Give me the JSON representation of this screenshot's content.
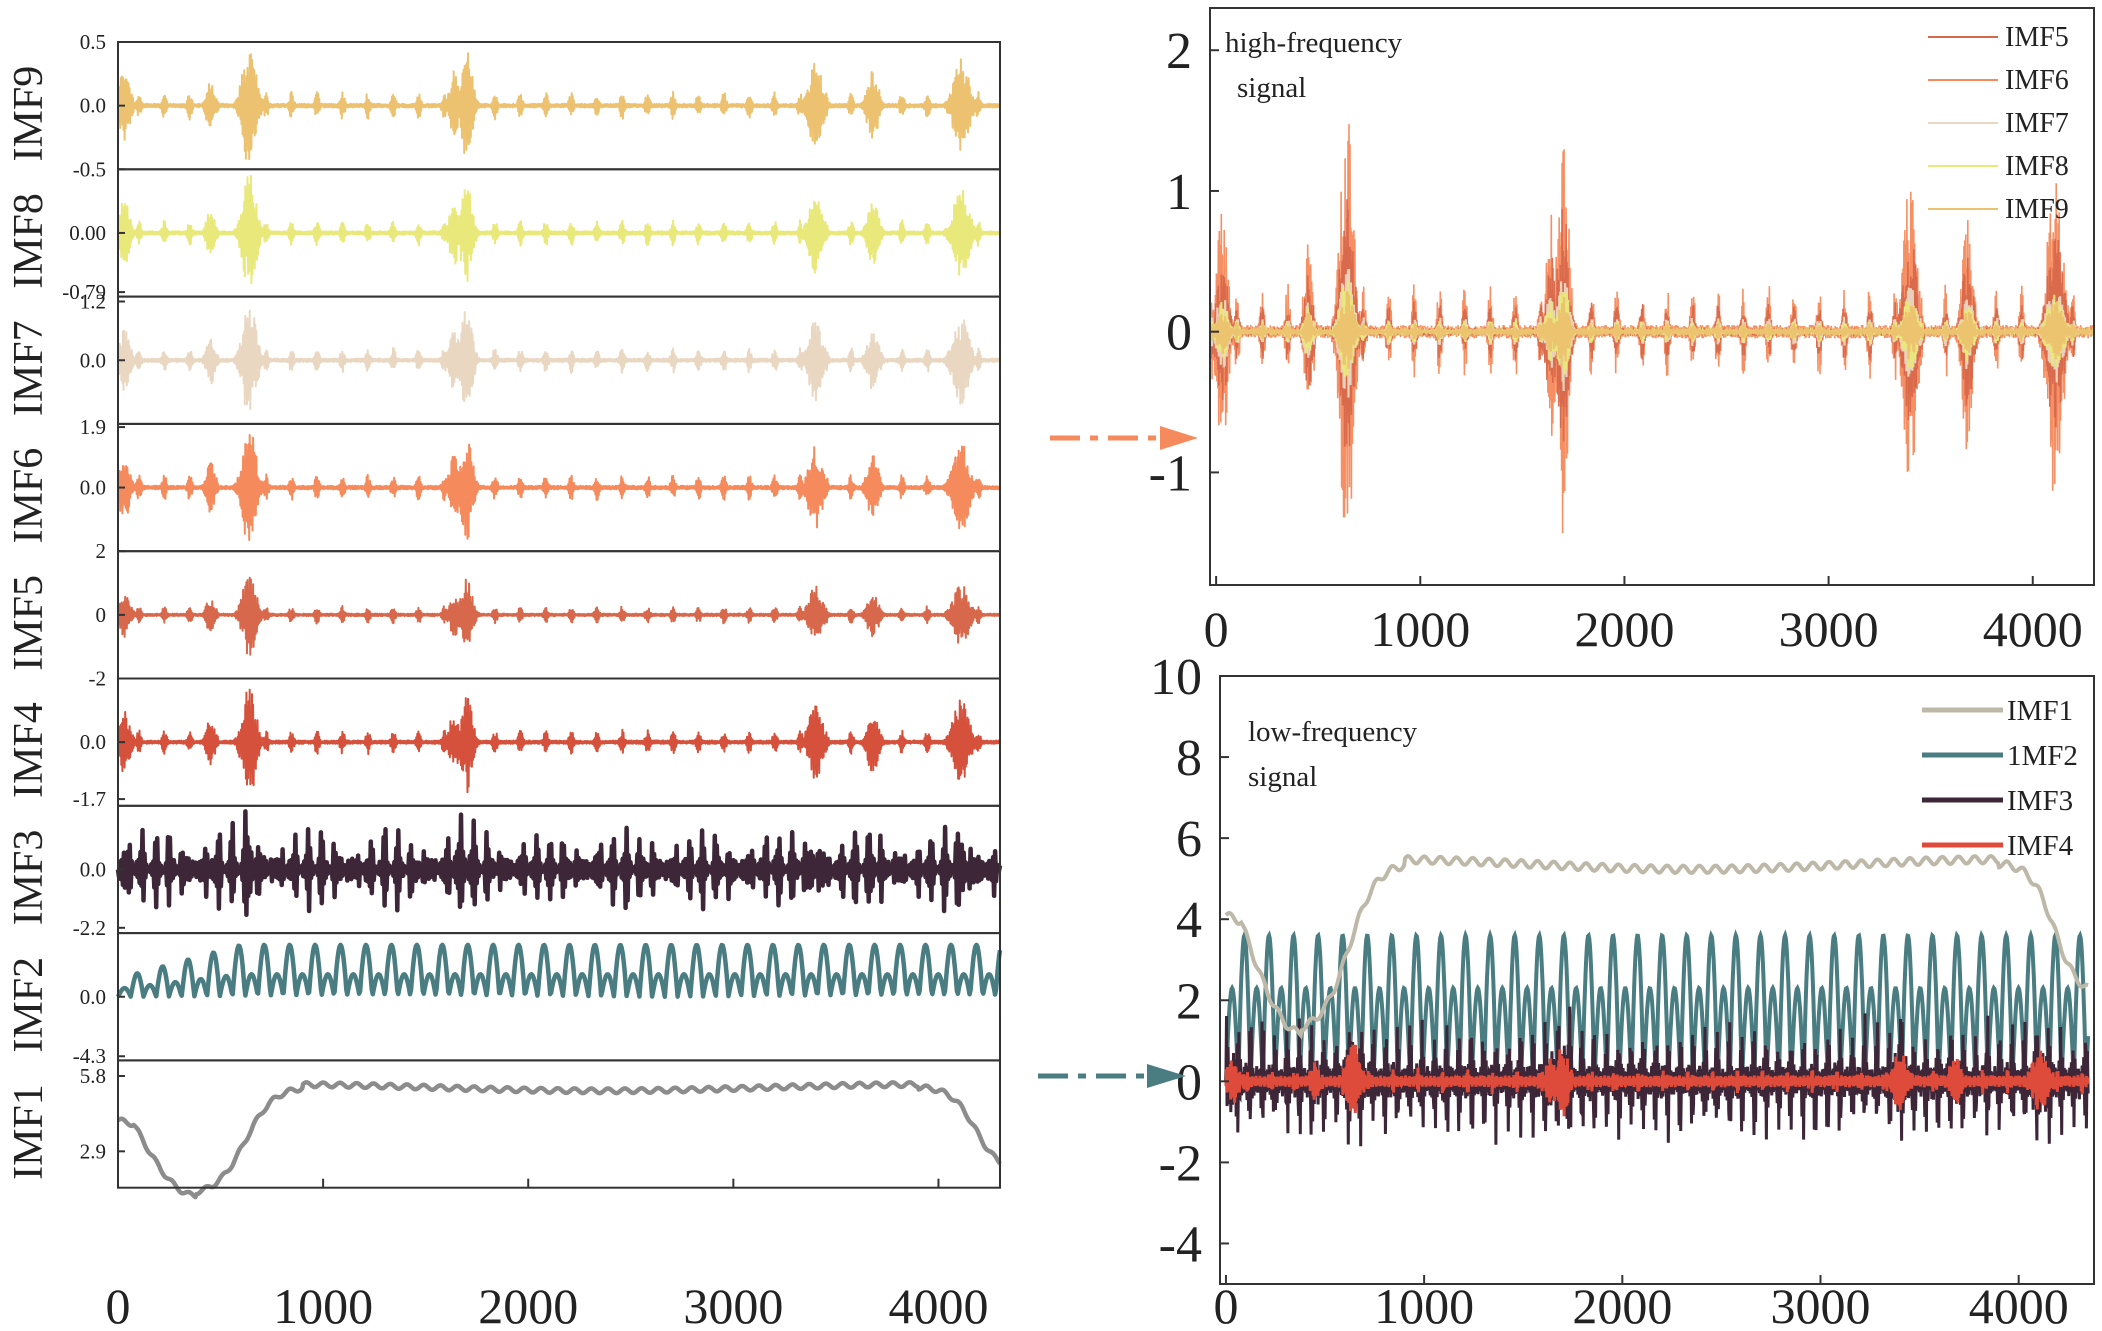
{
  "colors": {
    "IMF1": "#8c8c8c",
    "IMF2": "#4a7d82",
    "IMF3": "#3d2637",
    "IMF4": "#d5513c",
    "IMF5": "#d8684b",
    "IMF6": "#f58a5c",
    "IMF7": "#ead7c2",
    "IMF8": "#e9e87a",
    "IMF9": "#ecc270",
    "IMF1_low": "#bdb8a8",
    "IMF2_low": "#4a7d82",
    "IMF3_low": "#3d2637",
    "IMF4_low": "#df4b3a",
    "arrow_high": "#f58a5c",
    "arrow_low": "#4a7d82"
  },
  "chart_data": [
    {
      "type": "line",
      "title": "",
      "layout": "stacked",
      "x_ticks": [
        "0",
        "1000",
        "2000",
        "3000",
        "4000"
      ],
      "xlim": [
        0,
        4300
      ],
      "panels": [
        {
          "name": "IMF9",
          "kind": "bursts",
          "ymax": 0.5,
          "tick_labels": [
            "0.5",
            "0.0",
            "-0.5"
          ],
          "tick_values": [
            0.5,
            0,
            -0.5
          ],
          "ylim": [
            -0.5,
            0.5
          ]
        },
        {
          "name": "IMF8",
          "kind": "bursts",
          "ymax": 0.79,
          "tick_labels": [
            "0.00",
            "-0.79"
          ],
          "tick_values": [
            0,
            -0.79
          ],
          "ylim": [
            -0.85,
            0.85
          ]
        },
        {
          "name": "IMF7",
          "kind": "bursts",
          "ymax": 1.2,
          "tick_labels": [
            "1.2",
            "0.0"
          ],
          "tick_values": [
            1.2,
            0
          ],
          "ylim": [
            -1.3,
            1.3
          ]
        },
        {
          "name": "IMF6",
          "kind": "bursts",
          "ymax": 1.9,
          "tick_labels": [
            "1.9",
            "0.0"
          ],
          "tick_values": [
            1.9,
            0
          ],
          "ylim": [
            -2.0,
            2.0
          ]
        },
        {
          "name": "IMF5",
          "kind": "bursts",
          "ymax": 1.3,
          "tick_labels": [
            "2",
            "0",
            "-2"
          ],
          "tick_values": [
            2,
            0,
            -2
          ],
          "ylim": [
            -2,
            2
          ]
        },
        {
          "name": "IMF4",
          "kind": "bursts",
          "ymax": 1.7,
          "tick_labels": [
            "0.0",
            "-1.7"
          ],
          "tick_values": [
            0,
            -1.7
          ],
          "ylim": [
            -1.9,
            1.9
          ]
        },
        {
          "name": "IMF3",
          "kind": "spikes",
          "ymax": 2.0,
          "tick_labels": [
            "0.0",
            "-2.2"
          ],
          "tick_values": [
            0,
            -2.2
          ],
          "ylim": [
            -2.4,
            2.4
          ]
        },
        {
          "name": "IMF2",
          "kind": "sine",
          "ymax": 4.0,
          "tick_labels": [
            "0.0",
            "-4.3"
          ],
          "tick_values": [
            0,
            -4.3
          ],
          "ylim": [
            -4.6,
            4.6
          ]
        },
        {
          "name": "IMF1",
          "kind": "trend",
          "ymax": 6.0,
          "tick_labels": [
            "5.8",
            "2.9"
          ],
          "tick_values": [
            5.8,
            2.9
          ],
          "ylim": [
            1.5,
            6.4
          ]
        }
      ]
    },
    {
      "type": "line",
      "title": "",
      "annotation": [
        "high-frequency",
        "signal"
      ],
      "x_ticks": [
        "0",
        "1000",
        "2000",
        "3000",
        "4000"
      ],
      "xlim": [
        -30,
        4300
      ],
      "y_ticks": [
        "2",
        "1",
        "0",
        "-1"
      ],
      "y_tick_values": [
        2,
        1,
        0,
        -1
      ],
      "ylim": [
        -1.8,
        2.3
      ],
      "legend": [
        "IMF5",
        "IMF6",
        "IMF7",
        "IMF8",
        "IMF9"
      ],
      "legend_position": "top-right",
      "series": [
        {
          "name": "IMF5",
          "max_amplitude": 1.0
        },
        {
          "name": "IMF6",
          "max_amplitude": 1.6
        },
        {
          "name": "IMF7",
          "max_amplitude": 0.5
        },
        {
          "name": "IMF8",
          "max_amplitude": 0.4
        },
        {
          "name": "IMF9",
          "max_amplitude": 0.3
        }
      ]
    },
    {
      "type": "line",
      "title": "",
      "annotation": [
        "low-frequency",
        "signal"
      ],
      "x_ticks": [
        "0",
        "1000",
        "2000",
        "3000",
        "4000"
      ],
      "xlim": [
        -30,
        4380
      ],
      "y_ticks": [
        "10",
        "8",
        "6",
        "4",
        "2",
        "0",
        "-2",
        "-4"
      ],
      "y_tick_values": [
        10,
        8,
        6,
        4,
        2,
        0,
        -2,
        -4
      ],
      "ylim": [
        -5,
        10
      ],
      "legend": [
        "IMF1",
        "1MF2",
        "IMF3",
        "IMF4"
      ],
      "legend_position": "top-right",
      "series": [
        {
          "name": "IMF1",
          "start": 4.0,
          "dip_min": 1.2,
          "plateau": 5.4,
          "end": 2.0
        },
        {
          "name": "1MF2",
          "amplitude_up": 2.3,
          "amplitude_down": -3.6,
          "period": 124
        },
        {
          "name": "IMF3",
          "max_amplitude": 2.0
        },
        {
          "name": "IMF4",
          "max_amplitude": 1.0
        }
      ]
    }
  ]
}
